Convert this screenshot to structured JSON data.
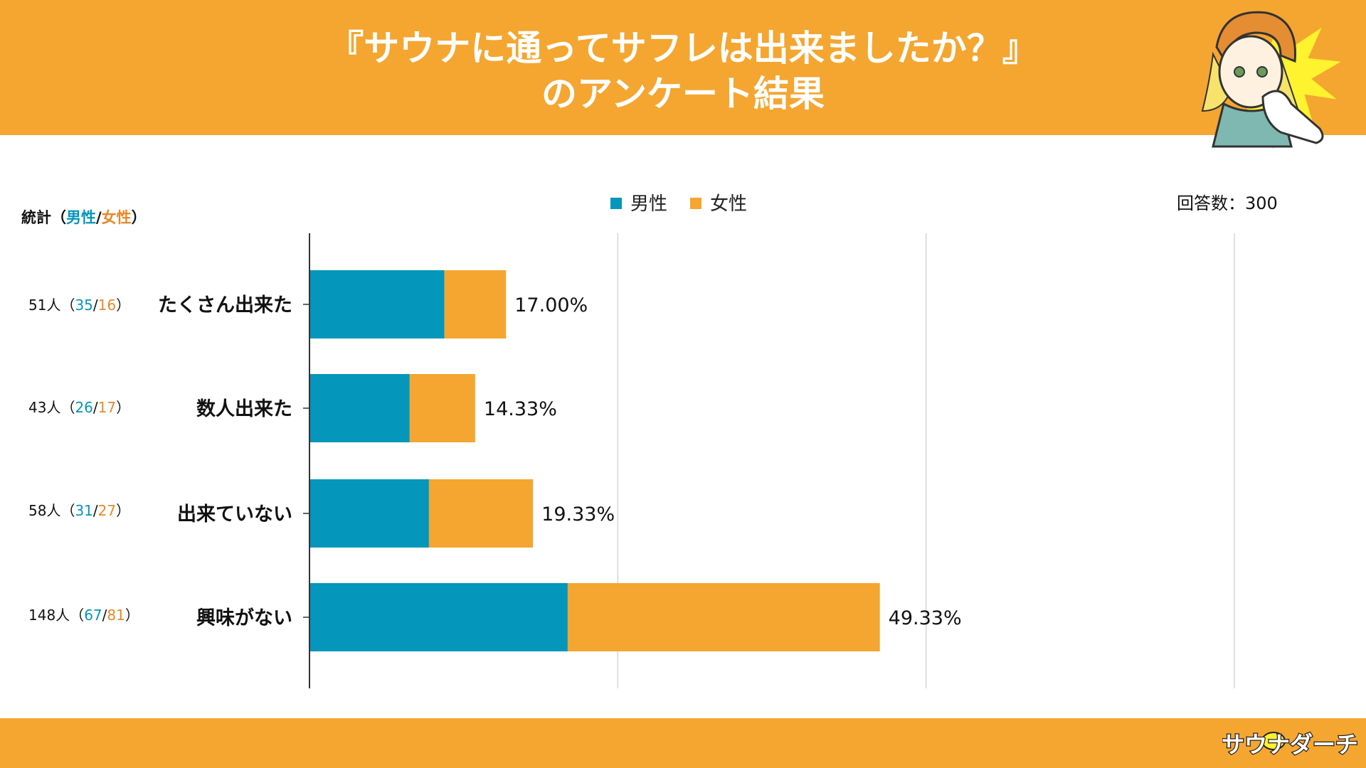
{
  "header": {
    "title_line1": "『サウナに通ってサフレは出来ましたか？』",
    "title_line2": "のアンケート結果",
    "bg_color": "#f4a631"
  },
  "stats_header": {
    "prefix": "統計（",
    "male": "男性",
    "sep": "/",
    "female": "女性",
    "suffix": "）"
  },
  "response_count": "回答数：300",
  "stats": [
    {
      "total": "51人（",
      "male": "35",
      "sep": "/",
      "female": "16",
      "close": "）"
    },
    {
      "total": "43人（",
      "male": "26",
      "sep": "/",
      "female": "17",
      "close": "）"
    },
    {
      "total": "58人（",
      "male": "31",
      "sep": "/",
      "female": "27",
      "close": "）"
    },
    {
      "total": "148人（",
      "male": "67",
      "sep": "/",
      "female": "81",
      "close": "）"
    }
  ],
  "footer": {
    "logo_text": "サウナダーチ"
  },
  "chart_data": {
    "type": "bar",
    "orientation": "horizontal",
    "stacked": true,
    "categories": [
      "たくさん出来た",
      "数人出来た",
      "出来ていない",
      "興味がない"
    ],
    "series": [
      {
        "name": "男性",
        "values": [
          35,
          26,
          31,
          67
        ],
        "color": "#0496bb"
      },
      {
        "name": "女性",
        "values": [
          16,
          17,
          27,
          81
        ],
        "color": "#f4a631"
      }
    ],
    "data_labels": [
      "17.00%",
      "14.33%",
      "19.33%",
      "49.33%"
    ],
    "xlim": [
      0,
      240
    ],
    "gridlines": [
      80,
      160,
      240
    ],
    "legend": "top-center",
    "total_responses": 300
  }
}
